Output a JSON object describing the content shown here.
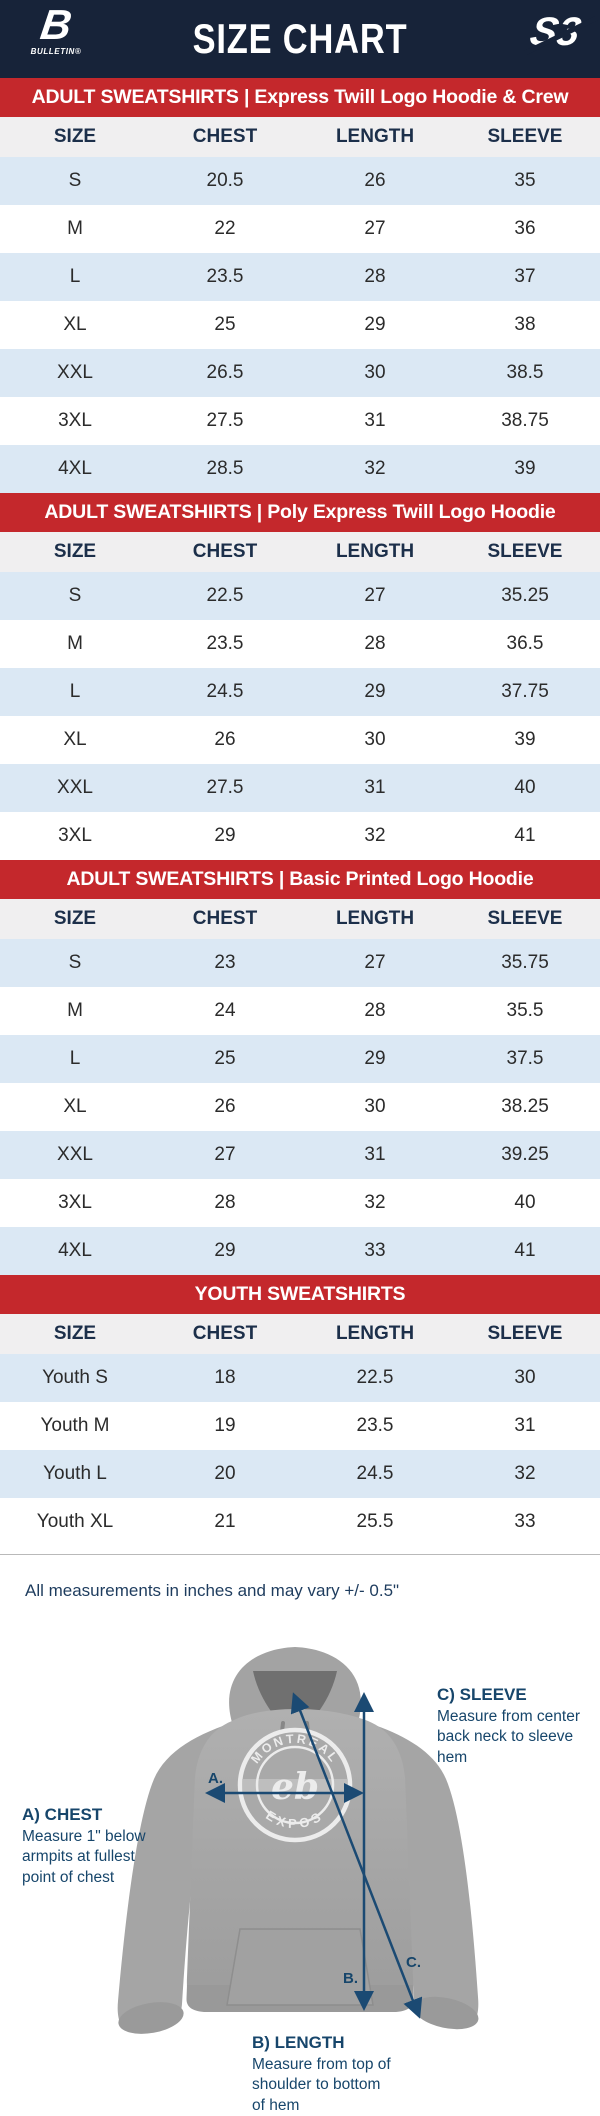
{
  "header": {
    "title": "SIZE CHART",
    "brand_left_glyph": "B",
    "brand_left_name": "BULLETIN®",
    "brand_right_glyph": "S3"
  },
  "table": {
    "columns": [
      "SIZE",
      "CHEST",
      "LENGTH",
      "SLEEVE"
    ]
  },
  "sections": [
    {
      "banner": "ADULT SWEATSHIRTS | Express Twill Logo Hoodie & Crew",
      "rows": [
        [
          "S",
          "20.5",
          "26",
          "35"
        ],
        [
          "M",
          "22",
          "27",
          "36"
        ],
        [
          "L",
          "23.5",
          "28",
          "37"
        ],
        [
          "XL",
          "25",
          "29",
          "38"
        ],
        [
          "XXL",
          "26.5",
          "30",
          "38.5"
        ],
        [
          "3XL",
          "27.5",
          "31",
          "38.75"
        ],
        [
          "4XL",
          "28.5",
          "32",
          "39"
        ]
      ]
    },
    {
      "banner": "ADULT SWEATSHIRTS | Poly Express Twill Logo Hoodie",
      "rows": [
        [
          "S",
          "22.5",
          "27",
          "35.25"
        ],
        [
          "M",
          "23.5",
          "28",
          "36.5"
        ],
        [
          "L",
          "24.5",
          "29",
          "37.75"
        ],
        [
          "XL",
          "26",
          "30",
          "39"
        ],
        [
          "XXL",
          "27.5",
          "31",
          "40"
        ],
        [
          "3XL",
          "29",
          "32",
          "41"
        ]
      ]
    },
    {
      "banner": "ADULT SWEATSHIRTS | Basic Printed Logo Hoodie",
      "rows": [
        [
          "S",
          "23",
          "27",
          "35.75"
        ],
        [
          "M",
          "24",
          "28",
          "35.5"
        ],
        [
          "L",
          "25",
          "29",
          "37.5"
        ],
        [
          "XL",
          "26",
          "30",
          "38.25"
        ],
        [
          "XXL",
          "27",
          "31",
          "39.25"
        ],
        [
          "3XL",
          "28",
          "32",
          "40"
        ],
        [
          "4XL",
          "29",
          "33",
          "41"
        ]
      ]
    },
    {
      "banner": "YOUTH SWEATSHIRTS",
      "rows": [
        [
          "Youth S",
          "18",
          "22.5",
          "30"
        ],
        [
          "Youth M",
          "19",
          "23.5",
          "31"
        ],
        [
          "Youth L",
          "20",
          "24.5",
          "32"
        ],
        [
          "Youth XL",
          "21",
          "25.5",
          "33"
        ]
      ]
    }
  ],
  "note": "All measurements in inches and may vary +/- 0.5\"",
  "diagram": {
    "chest": {
      "label": "A) CHEST",
      "desc": "Measure 1\" below armpits at fullest point of chest",
      "marker": "A."
    },
    "length": {
      "label": "B) LENGTH",
      "desc": "Measure from top of shoulder to bottom of hem",
      "marker": "B."
    },
    "sleeve": {
      "label": "C) SLEEVE",
      "desc": "Measure from center back neck to sleeve hem",
      "marker": "C."
    },
    "shirt_logo": {
      "top": "MONTREAL",
      "bottom": "EXPOS",
      "monogram": "eb"
    }
  },
  "colors": {
    "navy_header": "#172339",
    "banner_red": "#c4282c",
    "row_alt_blue": "#dbe8f4",
    "header_row_bg": "#f0eff0",
    "header_text": "#1c2f4a",
    "cell_text": "#2b2b2b",
    "annotation_navy": "#17466b",
    "arrow_navy": "#1b4a73",
    "divider_gray": "#b9b9b9",
    "hoodie_gray": "#a5a5a5"
  }
}
